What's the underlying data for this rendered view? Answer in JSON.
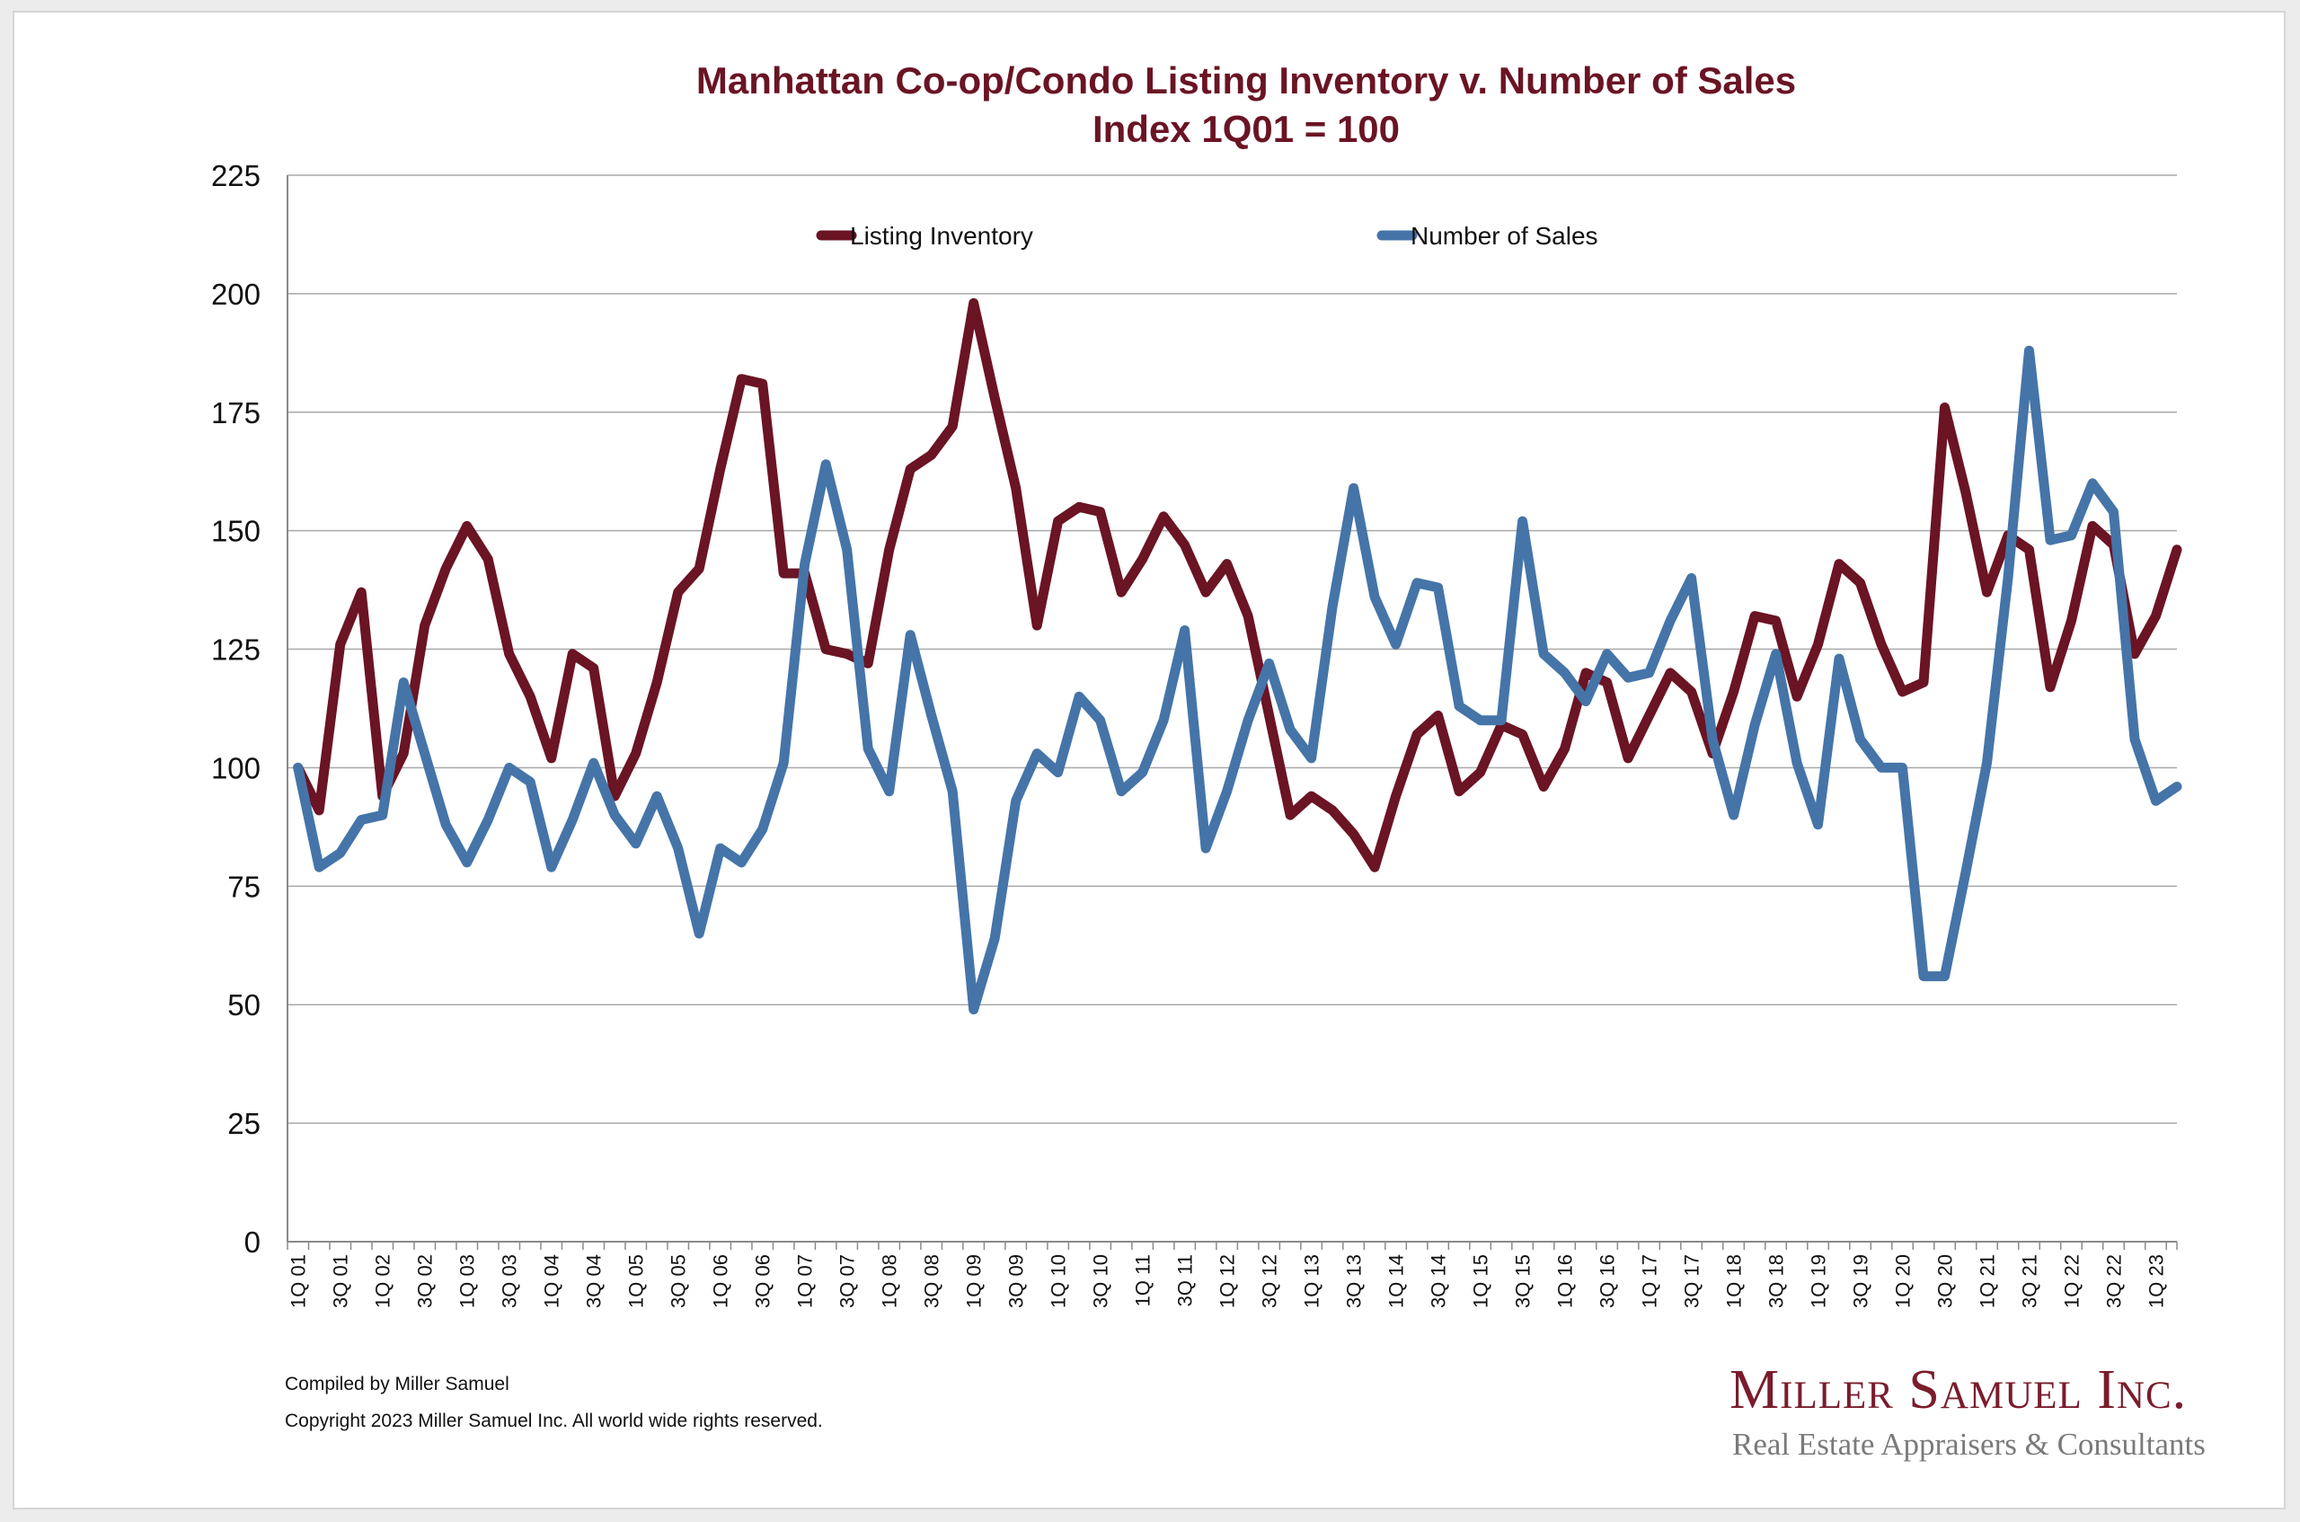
{
  "chart_data": {
    "type": "line",
    "title": "Manhattan Co-op/Condo Listing Inventory v. Number of Sales",
    "subtitle": "Index 1Q01 = 100",
    "xlabel": "",
    "ylabel": "",
    "ylim": [
      0,
      225
    ],
    "yticks": [
      0,
      25,
      50,
      75,
      100,
      125,
      150,
      175,
      200,
      225
    ],
    "grid": true,
    "legend_position": "top",
    "x_tick_labels": [
      "1Q 01",
      "3Q 01",
      "1Q 02",
      "3Q 02",
      "1Q 03",
      "3Q 03",
      "1Q 04",
      "3Q 04",
      "1Q 05",
      "3Q 05",
      "1Q 06",
      "3Q 06",
      "1Q 07",
      "3Q 07",
      "1Q 08",
      "3Q 08",
      "1Q 09",
      "3Q 09",
      "1Q 10",
      "3Q 10",
      "1Q 11",
      "3Q 11",
      "1Q 12",
      "3Q 12",
      "1Q 13",
      "3Q 13",
      "1Q 14",
      "3Q 14",
      "1Q 15",
      "3Q 15",
      "1Q 16",
      "3Q 16",
      "1Q 17",
      "3Q 17",
      "1Q 18",
      "3Q 18",
      "1Q 19",
      "3Q 19",
      "1Q 20",
      "3Q 20",
      "1Q 21",
      "3Q 21",
      "1Q 22",
      "3Q 22",
      "1Q 23"
    ],
    "categories": [
      "1Q 01",
      "2Q 01",
      "3Q 01",
      "4Q 01",
      "1Q 02",
      "2Q 02",
      "3Q 02",
      "4Q 02",
      "1Q 03",
      "2Q 03",
      "3Q 03",
      "4Q 03",
      "1Q 04",
      "2Q 04",
      "3Q 04",
      "4Q 04",
      "1Q 05",
      "2Q 05",
      "3Q 05",
      "4Q 05",
      "1Q 06",
      "2Q 06",
      "3Q 06",
      "4Q 06",
      "1Q 07",
      "2Q 07",
      "3Q 07",
      "4Q 07",
      "1Q 08",
      "2Q 08",
      "3Q 08",
      "4Q 08",
      "1Q 09",
      "2Q 09",
      "3Q 09",
      "4Q 09",
      "1Q 10",
      "2Q 10",
      "3Q 10",
      "4Q 10",
      "1Q 11",
      "2Q 11",
      "3Q 11",
      "4Q 11",
      "1Q 12",
      "2Q 12",
      "3Q 12",
      "4Q 12",
      "1Q 13",
      "2Q 13",
      "3Q 13",
      "4Q 13",
      "1Q 14",
      "2Q 14",
      "3Q 14",
      "4Q 14",
      "1Q 15",
      "2Q 15",
      "3Q 15",
      "4Q 15",
      "1Q 16",
      "2Q 16",
      "3Q 16",
      "4Q 16",
      "1Q 17",
      "2Q 17",
      "3Q 17",
      "4Q 17",
      "1Q 18",
      "2Q 18",
      "3Q 18",
      "4Q 18",
      "1Q 19",
      "2Q 19",
      "3Q 19",
      "4Q 19",
      "1Q 20",
      "2Q 20",
      "3Q 20",
      "4Q 20",
      "1Q 21",
      "2Q 21",
      "3Q 21",
      "4Q 21",
      "1Q 22",
      "2Q 22",
      "3Q 22",
      "4Q 22",
      "1Q 23",
      "2Q 23"
    ],
    "series": [
      {
        "name": "Listing Inventory",
        "color": "#6a1424",
        "values": [
          100,
          91,
          126,
          137,
          94,
          103,
          130,
          142,
          151,
          144,
          124,
          115,
          102,
          124,
          121,
          94,
          103,
          118,
          137,
          142,
          163,
          182,
          181,
          141,
          141,
          125,
          124,
          122,
          146,
          163,
          166,
          172,
          198,
          178,
          159,
          130,
          152,
          155,
          154,
          137,
          144,
          153,
          147,
          137,
          143,
          132,
          111,
          90,
          94,
          91,
          86,
          79,
          94,
          107,
          111,
          95,
          99,
          109,
          107,
          96,
          104,
          120,
          118,
          102,
          111,
          120,
          116,
          103,
          116,
          132,
          131,
          115,
          126,
          143,
          139,
          126,
          116,
          118,
          176,
          158,
          137,
          149,
          146,
          117,
          131,
          151,
          147,
          124,
          132,
          146
        ]
      },
      {
        "name": "Number of Sales",
        "color": "#4574a8",
        "values": [
          100,
          79,
          82,
          89,
          90,
          118,
          103,
          88,
          80,
          89,
          100,
          97,
          79,
          89,
          101,
          90,
          84,
          94,
          83,
          65,
          83,
          80,
          87,
          101,
          143,
          164,
          146,
          104,
          95,
          128,
          111,
          95,
          49,
          64,
          93,
          103,
          99,
          115,
          110,
          95,
          99,
          110,
          129,
          83,
          95,
          110,
          122,
          108,
          102,
          134,
          159,
          136,
          126,
          139,
          138,
          113,
          110,
          110,
          152,
          124,
          120,
          114,
          124,
          119,
          120,
          131,
          140,
          106,
          90,
          109,
          124,
          101,
          88,
          123,
          106,
          100,
          100,
          56,
          56,
          78,
          101,
          140,
          188,
          148,
          149,
          160,
          154,
          106,
          93,
          96
        ]
      }
    ]
  },
  "footer": {
    "compiled": "Compiled by Miller Samuel",
    "copyright": "Copyright 2023 Miller Samuel Inc.  All world wide rights reserved."
  },
  "logo": {
    "name": "Miller Samuel Inc.",
    "tagline": "Real Estate Appraisers & Consultants"
  }
}
